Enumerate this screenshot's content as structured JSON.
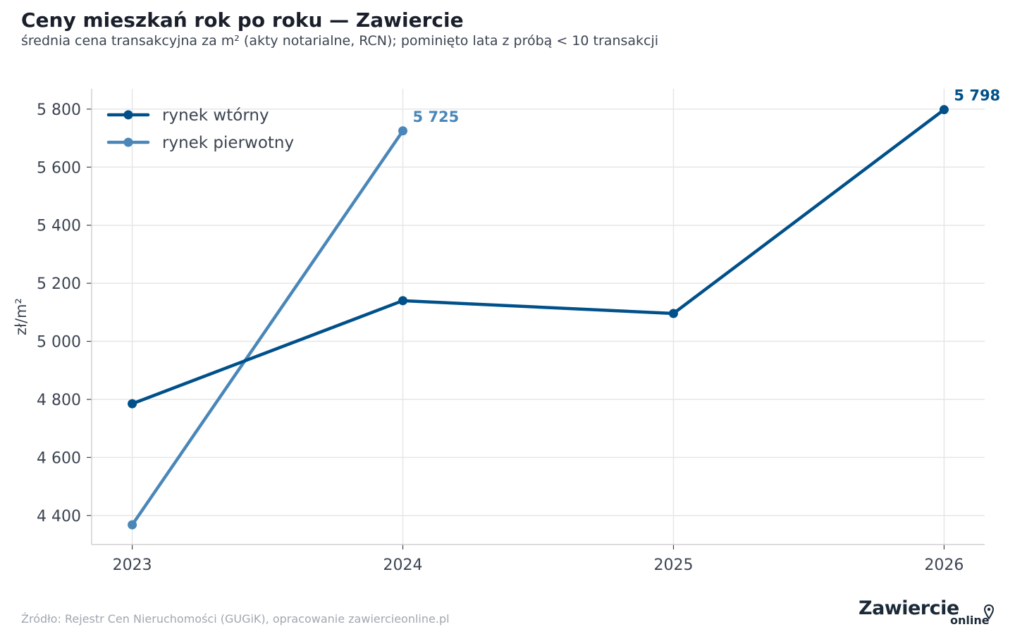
{
  "title": "Ceny mieszkań rok po roku — Zawiercie",
  "subtitle": "średnia cena transakcyjna za m² (akty notarialne, RCN); pominięto lata z próbą < 10 transakcji",
  "source": "Źródło: Rejestr Cen Nieruchomości (GUGiK), opracowanie zawiercieonline.pl",
  "logo": {
    "main": "Zawiercie",
    "sub": "online",
    "icon": "map-pin-icon"
  },
  "colors": {
    "secondary": "#00508a",
    "primary": "#4a87b8",
    "grid": "#e6e6e6",
    "axis": "#d0d0d0",
    "text": "#3c4451"
  },
  "chart_data": {
    "type": "line",
    "x": [
      2023,
      2024,
      2025,
      2026
    ],
    "xlim": [
      2022.85,
      2026.15
    ],
    "ylim": [
      4300,
      5870
    ],
    "yticks": [
      4400,
      4600,
      4800,
      5000,
      5200,
      5400,
      5600,
      5800
    ],
    "ytick_labels": [
      "4 400",
      "4 600",
      "4 800",
      "5 000",
      "5 200",
      "5 400",
      "5 600",
      "5 800"
    ],
    "xtick_labels": [
      "2023",
      "2024",
      "2025",
      "2026"
    ],
    "xlabel": "",
    "ylabel": "zł/m²",
    "grid": true,
    "legend": "top-left",
    "series": [
      {
        "name": "rynek wtórny",
        "color": "#00508a",
        "values": [
          4785,
          5140,
          5096,
          5798
        ],
        "end_label": "5 798"
      },
      {
        "name": "rynek pierwotny",
        "color": "#4a87b8",
        "values": [
          4368,
          5725,
          null,
          null
        ],
        "end_label": "5 725"
      }
    ]
  }
}
